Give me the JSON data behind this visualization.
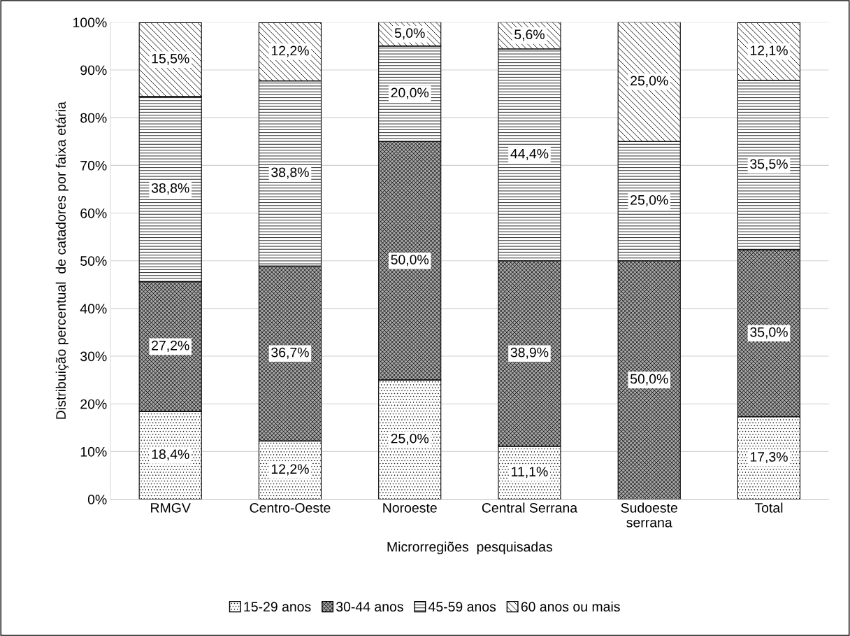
{
  "chart_data": {
    "type": "bar",
    "stacked": true,
    "categories": [
      "RMGV",
      "Centro-Oeste",
      "Noroeste",
      "Central Serrana",
      "Sudoeste\nserrana",
      "Total"
    ],
    "xlabel": "Microrregiões  pesquisadas",
    "ylabel": "Distribuição percentual  de catadores por faixa etária",
    "ylim": [
      0,
      100
    ],
    "yticks": [
      {
        "value": 0,
        "label": "0%"
      },
      {
        "value": 10,
        "label": "10%"
      },
      {
        "value": 20,
        "label": "20%"
      },
      {
        "value": 30,
        "label": "30%"
      },
      {
        "value": 40,
        "label": "40%"
      },
      {
        "value": 50,
        "label": "50%"
      },
      {
        "value": 60,
        "label": "60%"
      },
      {
        "value": 70,
        "label": "70%"
      },
      {
        "value": 80,
        "label": "80%"
      },
      {
        "value": 90,
        "label": "90%"
      },
      {
        "value": 100,
        "label": "100%"
      }
    ],
    "grid": "y",
    "legend": "bottom",
    "series": [
      {
        "name": "15-29 anos",
        "color": "#ffffff",
        "values": [
          18.4,
          12.2,
          25.0,
          11.1,
          0,
          17.3
        ],
        "value_labels": [
          "18,4%",
          "12,2%",
          "25,0%",
          "11,1%",
          null,
          "17,3%"
        ]
      },
      {
        "name": "30-44 anos",
        "color": "#a6a6a6",
        "values": [
          27.2,
          36.7,
          50.0,
          38.9,
          50.0,
          35.0
        ],
        "value_labels": [
          "27,2%",
          "36,7%",
          "50,0%",
          "38,9%",
          "50,0%",
          "35,0%"
        ]
      },
      {
        "name": "45-59 anos",
        "color": "#ffffff",
        "values": [
          38.8,
          38.8,
          20.0,
          44.4,
          25.0,
          35.5
        ],
        "value_labels": [
          "38,8%",
          "38,8%",
          "20,0%",
          "44,4%",
          "25,0%",
          "35,5%"
        ]
      },
      {
        "name": "60 anos ou mais",
        "color": "#ffffff",
        "values": [
          15.5,
          12.2,
          5.0,
          5.6,
          25.0,
          12.1
        ],
        "value_labels": [
          "15,5%",
          "12,2%",
          "5,0%",
          "5,6%",
          "25,0%",
          "12,1%"
        ]
      }
    ]
  }
}
